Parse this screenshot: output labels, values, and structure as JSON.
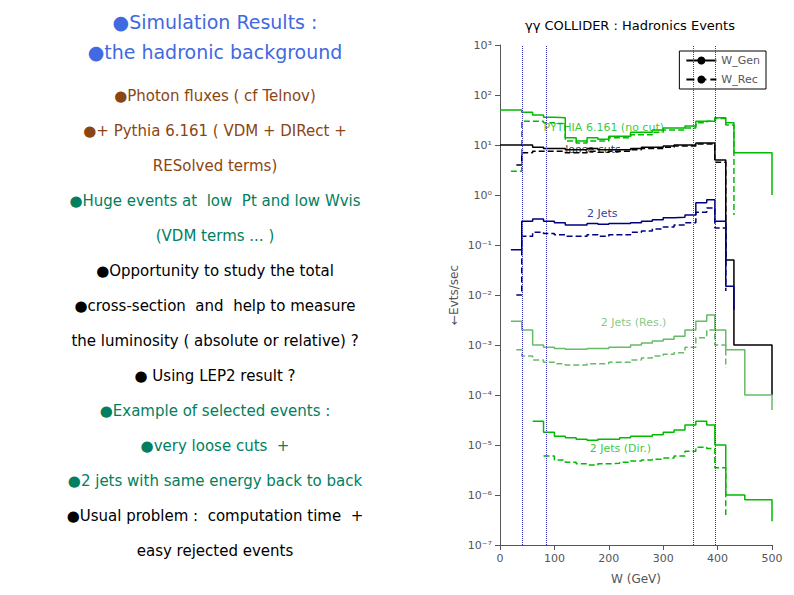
{
  "chart_data": {
    "type": "step",
    "title": "γγ COLLIDER : Hadronics Events",
    "x_label": "W (GeV)",
    "y_label": "←Evts/sec",
    "log": "y",
    "grid": false,
    "legend": "upper right",
    "legend_entries": [
      {
        "name": "W_Gen",
        "color": "#000000",
        "line_style": "solid"
      },
      {
        "name": "W_Rec",
        "color": "#000000",
        "line_style": "dashed"
      }
    ],
    "xlim": [
      0,
      500
    ],
    "xticks": [
      0,
      100,
      200,
      300,
      400,
      500
    ],
    "ylim": [
      1e-07,
      1000
    ],
    "yticks": [
      {
        "value": 1e-07,
        "label": "10⁻⁷"
      },
      {
        "value": 1e-06,
        "label": "10⁻⁶"
      },
      {
        "value": 1e-05,
        "label": "10⁻⁵"
      },
      {
        "value": 0.0001,
        "label": "10⁻⁴"
      },
      {
        "value": 0.001,
        "label": "10⁻³"
      },
      {
        "value": 0.01,
        "label": "10⁻²"
      },
      {
        "value": 0.1,
        "label": "10⁻¹"
      },
      {
        "value": 1,
        "label": "10⁰"
      },
      {
        "value": 10,
        "label": "10¹"
      },
      {
        "value": 100,
        "label": "10²"
      },
      {
        "value": 1000,
        "label": "10³"
      }
    ],
    "series": [
      {
        "color": "#00bb00",
        "line_style": "solid",
        "x": [
          0,
          20,
          40,
          60,
          80,
          100,
          120,
          140,
          160,
          180,
          200,
          220,
          240,
          260,
          280,
          300,
          320,
          340,
          360,
          380,
          395,
          415,
          430,
          500
        ],
        "values": [
          50,
          50,
          45,
          40,
          36,
          35,
          14,
          12,
          14,
          13,
          15,
          15,
          18,
          18,
          20,
          22,
          22,
          24,
          30,
          30,
          35,
          28,
          7,
          1
        ]
      },
      {
        "color": "#00bb00",
        "line_style": "dashed",
        "x": [
          20,
          40,
          60,
          80,
          100,
          120,
          140,
          160,
          180,
          200,
          220,
          240,
          260,
          280,
          300,
          320,
          340,
          360,
          380,
          395,
          415,
          430
        ],
        "values": [
          3,
          30,
          30,
          28,
          27,
          12,
          11,
          12,
          12,
          14,
          14,
          16,
          16,
          18,
          20,
          20,
          22,
          28,
          30,
          34,
          25,
          0.4
        ]
      },
      {
        "color": "#000000",
        "line_style": "solid",
        "x": [
          0,
          20,
          40,
          60,
          80,
          100,
          120,
          140,
          160,
          180,
          200,
          220,
          240,
          260,
          280,
          300,
          320,
          340,
          360,
          380,
          395,
          415,
          430,
          500
        ],
        "values": [
          10,
          10,
          10,
          9,
          8.5,
          8.5,
          8,
          8,
          8.5,
          8,
          8,
          8,
          8.5,
          9,
          9,
          9.5,
          10,
          10,
          11,
          11,
          5,
          0.05,
          0.001,
          0.0001
        ]
      },
      {
        "color": "#000000",
        "line_style": "dashed",
        "x": [
          30,
          40,
          60,
          80,
          100,
          120,
          140,
          160,
          180,
          200,
          220,
          240,
          260,
          280,
          300,
          320,
          340,
          360,
          380,
          395,
          415
        ],
        "values": [
          4,
          7,
          7.5,
          7.5,
          7.5,
          7,
          7,
          7.5,
          7.2,
          7.5,
          7.5,
          8,
          8.5,
          8.5,
          9,
          9.5,
          9.5,
          10.5,
          10.5,
          4.5,
          0.04
        ]
      },
      {
        "color": "#000080",
        "line_style": "solid",
        "x": [
          20,
          40,
          60,
          80,
          100,
          120,
          140,
          160,
          180,
          200,
          220,
          240,
          260,
          280,
          300,
          320,
          340,
          360,
          380,
          395,
          415,
          430
        ],
        "values": [
          0.08,
          0.3,
          0.33,
          0.3,
          0.28,
          0.25,
          0.25,
          0.27,
          0.26,
          0.27,
          0.27,
          0.28,
          0.3,
          0.32,
          0.35,
          0.36,
          0.4,
          0.7,
          0.8,
          0.3,
          0.015,
          0.005
        ]
      },
      {
        "color": "#000080",
        "line_style": "dashed",
        "x": [
          30,
          40,
          60,
          80,
          100,
          120,
          140,
          160,
          180,
          200,
          220,
          240,
          260,
          280,
          300,
          320,
          340,
          360,
          380,
          395,
          415
        ],
        "values": [
          0.01,
          0.15,
          0.18,
          0.17,
          0.16,
          0.15,
          0.15,
          0.16,
          0.15,
          0.16,
          0.16,
          0.18,
          0.19,
          0.21,
          0.23,
          0.25,
          0.28,
          0.45,
          0.55,
          0.22,
          0.012
        ]
      },
      {
        "color": "#66bb66",
        "line_style": "solid",
        "x": [
          20,
          40,
          60,
          80,
          100,
          120,
          140,
          160,
          180,
          200,
          220,
          240,
          260,
          280,
          300,
          320,
          340,
          360,
          380,
          395,
          415,
          450,
          500
        ],
        "values": [
          0.003,
          0.002,
          0.001,
          0.0009,
          0.00085,
          0.00082,
          0.00082,
          0.00085,
          0.00085,
          0.0009,
          0.0009,
          0.001,
          0.0011,
          0.0012,
          0.0013,
          0.0015,
          0.002,
          0.003,
          0.004,
          0.002,
          0.0008,
          0.0001,
          5e-05
        ]
      },
      {
        "color": "#66bb66",
        "line_style": "dashed",
        "x": [
          30,
          40,
          60,
          80,
          100,
          120,
          140,
          160,
          180,
          200,
          220,
          240,
          260,
          280,
          300,
          320,
          340,
          360,
          380,
          395,
          415
        ],
        "values": [
          0.0008,
          0.0006,
          0.0005,
          0.00045,
          0.00042,
          0.0004,
          0.0004,
          0.00042,
          0.00042,
          0.00045,
          0.00045,
          0.0005,
          0.00055,
          0.0006,
          0.00065,
          0.0007,
          0.0009,
          0.0014,
          0.002,
          0.001,
          0.00035
        ]
      },
      {
        "color": "#00bb00",
        "line_style": "solid",
        "x": [
          60,
          80,
          100,
          120,
          140,
          160,
          180,
          200,
          220,
          240,
          260,
          280,
          300,
          320,
          340,
          360,
          380,
          395,
          415,
          450,
          500
        ],
        "values": [
          3e-05,
          1.8e-05,
          1.5e-05,
          1.4e-05,
          1.3e-05,
          1.25e-05,
          1.3e-05,
          1.3e-05,
          1.4e-05,
          1.5e-05,
          1.5e-05,
          1.6e-05,
          1.8e-05,
          2e-05,
          2.5e-05,
          3e-05,
          2.5e-05,
          1e-05,
          1e-06,
          8e-07,
          3e-07
        ]
      },
      {
        "color": "#00bb00",
        "line_style": "dashed",
        "x": [
          80,
          100,
          120,
          140,
          160,
          180,
          200,
          220,
          240,
          260,
          280,
          300,
          320,
          340,
          360,
          380,
          395,
          415
        ],
        "values": [
          6e-06,
          5e-06,
          4.5e-06,
          4.2e-06,
          4e-06,
          4.2e-06,
          4.3e-06,
          4.5e-06,
          4.8e-06,
          5e-06,
          5.2e-06,
          5.5e-06,
          6e-06,
          7.5e-06,
          9e-06,
          8.5e-06,
          3.5e-06,
          4e-07
        ]
      }
    ],
    "vlines": [
      {
        "x": 40,
        "color": "#3333bb",
        "line_style": "dotted"
      },
      {
        "x": 85,
        "color": "#3333bb",
        "line_style": "dotted"
      },
      {
        "x": 355,
        "color": "#3333bb",
        "line_style": "dotted"
      },
      {
        "x": 395,
        "color": "#3333bb",
        "line_style": "dotted"
      }
    ],
    "annotations": [
      {
        "text": "PYTHIA 6.161 (no cut)",
        "x": 80,
        "y": 22,
        "color": "#00bb00"
      },
      {
        "text": "loose cuts",
        "x": 120,
        "y": 8,
        "color": "#000000"
      },
      {
        "text": "2 Jets",
        "x": 160,
        "y": 0.42,
        "color": "#000080"
      },
      {
        "text": "2 Jets (Res.)",
        "x": 185,
        "y": 0.0028,
        "color": "#66bb66"
      },
      {
        "text": "2 Jets (Dir.)",
        "x": 165,
        "y": 8.5e-06,
        "color": "#00bb00"
      }
    ],
    "text_panel": {
      "headings": [
        {
          "text": "●Simulation Results :",
          "color": "#4169E1"
        },
        {
          "text": "●the hadronic background",
          "color": "#4169E1"
        }
      ],
      "body": [
        {
          "text": "●Photon fluxes ( cf Telnov)",
          "color": "#8B4513"
        },
        {
          "text": "●+ Pythia 6.161 ( VDM + DIRect +",
          "color": "#8B4513"
        },
        {
          "text": "RESolved terms)",
          "color": "#8B4513"
        },
        {
          "text": "●Huge events at  low  Pt and low Wvis",
          "color": "#008060"
        },
        {
          "text": "(VDM terms ... )",
          "color": "#008060"
        },
        {
          "text": "●Opportunity to study the total",
          "color": "#000000"
        },
        {
          "text": "●cross-section  and  help to measure",
          "color": "#000000"
        },
        {
          "text": "the luminosity ( absolute or relative) ?",
          "color": "#000000"
        },
        {
          "text": "● Using LEP2 result ?",
          "color": "#000000"
        },
        {
          "text": "●Example of selected events :",
          "color": "#008060"
        },
        {
          "text": "●very loose cuts  +",
          "color": "#008060"
        },
        {
          "text": "●2 jets with same energy back to back",
          "color": "#008060"
        },
        {
          "text": "●Usual problem :  computation time  +",
          "color": "#000000"
        },
        {
          "text": "easy rejected events",
          "color": "#000000"
        }
      ]
    }
  }
}
